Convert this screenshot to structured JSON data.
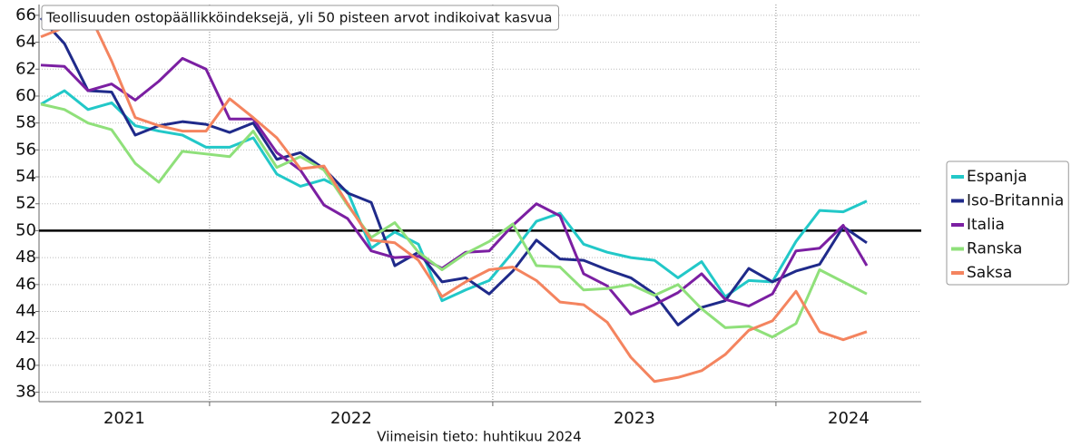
{
  "chart_data": {
    "type": "line",
    "title": "Teollisuuden ostopäällikköindeksejä, yli 50 pisteen arvot indikoivat kasvua",
    "footer": "Viimeisin tieto: huhtikuu 2024",
    "year_labels": [
      "2021",
      "2022",
      "2023",
      "2024"
    ],
    "categories": [
      null,
      null,
      null,
      null,
      null,
      null,
      null,
      null,
      null,
      null,
      null,
      null,
      null,
      null,
      null,
      null,
      null,
      null,
      null,
      null,
      null,
      null,
      null,
      null,
      null,
      null,
      null,
      null,
      null,
      null,
      null,
      null,
      null,
      null,
      null,
      null
    ],
    "ylim": [
      37.3,
      66.8
    ],
    "yticks": [
      38,
      40,
      42,
      44,
      46,
      48,
      50,
      52,
      54,
      56,
      58,
      60,
      62,
      64,
      66
    ],
    "grid": true,
    "reference_line": 50,
    "legend": "right",
    "series": [
      {
        "name": "Espanja",
        "color": "#22c8c8",
        "values": [
          59.4,
          60.4,
          59.0,
          59.5,
          57.8,
          57.4,
          57.1,
          56.2,
          56.2,
          56.9,
          54.2,
          53.3,
          53.8,
          52.9,
          48.7,
          49.9,
          49.0,
          44.8,
          45.6,
          46.3,
          48.4,
          50.7,
          51.3,
          49.0,
          48.4,
          48.0,
          47.8,
          46.5,
          47.7,
          45.1,
          46.3,
          46.2,
          49.2,
          51.5,
          51.4,
          52.2
        ]
      },
      {
        "name": "Iso-Britannia",
        "color": "#1f2a8a",
        "values": [
          65.8,
          63.9,
          60.4,
          60.3,
          57.1,
          57.8,
          58.1,
          57.9,
          57.3,
          58.0,
          55.3,
          55.8,
          54.6,
          52.8,
          52.1,
          47.4,
          48.4,
          46.2,
          46.5,
          45.3,
          47.0,
          49.3,
          47.9,
          47.8,
          47.1,
          46.5,
          45.3,
          43.0,
          44.3,
          44.8,
          47.2,
          46.2,
          47.0,
          47.5,
          50.3,
          49.1
        ]
      },
      {
        "name": "Italia",
        "color": "#7b1fa2",
        "values": [
          62.3,
          62.2,
          60.4,
          60.9,
          59.7,
          61.1,
          62.8,
          62.0,
          58.3,
          58.3,
          55.8,
          54.5,
          51.9,
          50.9,
          48.5,
          48.0,
          48.1,
          47.2,
          48.4,
          48.5,
          50.4,
          52.0,
          51.1,
          46.8,
          45.9,
          43.8,
          44.5,
          45.4,
          46.8,
          44.9,
          44.4,
          45.3,
          48.5,
          48.7,
          50.4,
          47.4
        ]
      },
      {
        "name": "Ranska",
        "color": "#8fe07a",
        "values": [
          59.4,
          59.0,
          58.0,
          57.5,
          55.0,
          53.6,
          55.9,
          55.7,
          55.5,
          57.4,
          54.7,
          55.5,
          54.5,
          51.9,
          49.5,
          50.6,
          48.4,
          47.1,
          48.3,
          49.2,
          50.5,
          47.4,
          47.3,
          45.6,
          45.7,
          46.0,
          45.2,
          46.0,
          44.2,
          42.8,
          42.9,
          42.1,
          43.1,
          47.1,
          46.2,
          45.3
        ]
      },
      {
        "name": "Saksa",
        "color": "#f4845f",
        "values": [
          64.4,
          65.1,
          66.3,
          62.6,
          58.4,
          57.8,
          57.4,
          57.4,
          59.8,
          58.4,
          56.9,
          54.6,
          54.8,
          52.0,
          49.3,
          49.1,
          47.8,
          45.1,
          46.2,
          47.1,
          47.3,
          46.3,
          44.7,
          44.5,
          43.2,
          40.6,
          38.8,
          39.1,
          39.6,
          40.8,
          42.6,
          43.3,
          45.5,
          42.5,
          41.9,
          42.5
        ]
      }
    ]
  }
}
